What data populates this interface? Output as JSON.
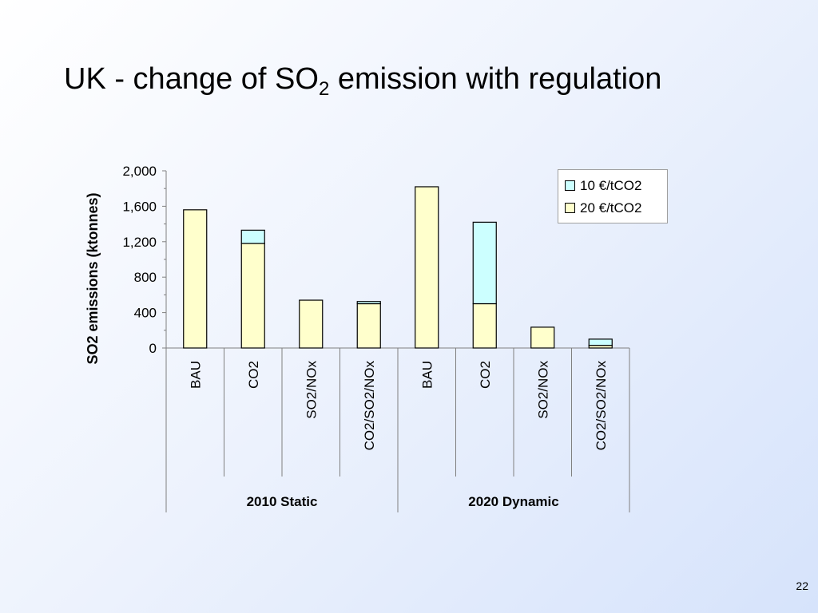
{
  "slide": {
    "title_main": "UK - change of SO",
    "title_sub": "2",
    "title_rest": " emission with regulation",
    "page_number": "22"
  },
  "chart_data": {
    "type": "bar",
    "stacked": true,
    "ylabel": "SO2 emissions (ktonnes)",
    "ylim": [
      0,
      2000
    ],
    "yticks": [
      "0",
      "400",
      "800",
      "1,200",
      "1,600",
      "2,000"
    ],
    "ytick_values": [
      0,
      400,
      800,
      1200,
      1600,
      2000
    ],
    "categories": [
      "BAU",
      "CO2",
      "SO2/NOx",
      "CO2/SO2/NOx",
      "BAU",
      "CO2",
      "SO2/NOx",
      "CO2/SO2/NOx"
    ],
    "groups": [
      {
        "label": "2010 Static",
        "span": 4
      },
      {
        "label": "2020  Dynamic",
        "span": 4
      }
    ],
    "series": [
      {
        "name": "20 €/tCO2",
        "color": "#ffffcc",
        "values": [
          1560,
          1180,
          540,
          500,
          1820,
          500,
          235,
          30
        ]
      },
      {
        "name": "10 €/tCO2",
        "color": "#ccffff",
        "values": [
          0,
          150,
          0,
          25,
          0,
          920,
          0,
          70
        ]
      }
    ],
    "legend_position": "top-right",
    "legend_order": [
      1,
      0
    ],
    "grid": false
  }
}
